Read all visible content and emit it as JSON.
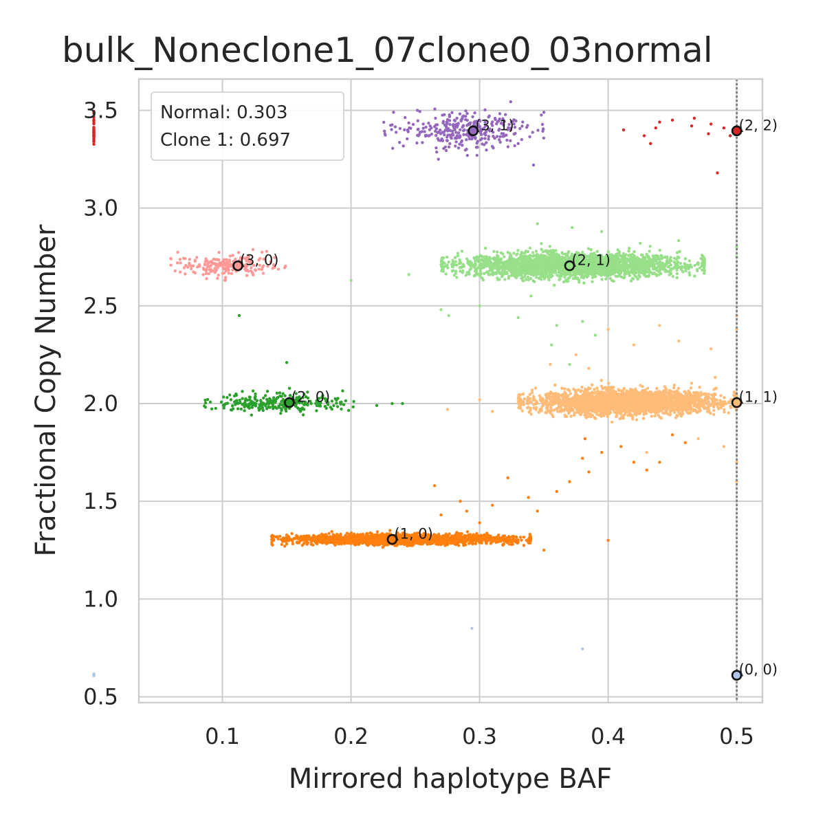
{
  "chart_data": {
    "type": "scatter",
    "title": "bulk_Noneclone1_07clone0_03normal",
    "xlabel": "Mirrored haplotype BAF",
    "ylabel": "Fractional Copy Number",
    "xlim": [
      0.035,
      0.52
    ],
    "ylim": [
      0.47,
      3.66
    ],
    "xticks": [
      0.1,
      0.2,
      0.3,
      0.4,
      0.5
    ],
    "xtick_labels": [
      "0.1",
      "0.2",
      "0.3",
      "0.4",
      "0.5"
    ],
    "yticks": [
      0.5,
      1.0,
      1.5,
      2.0,
      2.5,
      3.0,
      3.5
    ],
    "ytick_labels": [
      "0.5",
      "1.0",
      "1.5",
      "2.0",
      "2.5",
      "3.0",
      "3.5"
    ],
    "grid": true,
    "reference_line": {
      "x": 0.5,
      "style": "dotted",
      "color": "#808080"
    },
    "legend_box": {
      "placement": "top-left",
      "lines": [
        "Normal: 0.303",
        "Clone 1: 0.697"
      ]
    },
    "clusters": [
      {
        "state": "(0, 0)",
        "color": "#aec7e8",
        "center": [
          0.5,
          0.61
        ],
        "count": 4,
        "x_spread": [
          0.0,
          0.0
        ],
        "y_spread": 0.005,
        "extra": [
          [
            0.294,
            0.85
          ],
          [
            0.38,
            0.745
          ]
        ]
      },
      {
        "state": "(1, 0)",
        "color": "#ff7f0e",
        "center": [
          0.232,
          1.305
        ],
        "count": 2200,
        "x_spread": [
          0.138,
          0.34
        ],
        "y_spread": 0.012,
        "extra": [
          [
            0.27,
            1.43
          ],
          [
            0.285,
            1.5
          ],
          [
            0.29,
            1.45
          ],
          [
            0.31,
            1.48
          ],
          [
            0.322,
            1.62
          ],
          [
            0.338,
            1.52
          ],
          [
            0.345,
            1.45
          ],
          [
            0.36,
            1.55
          ],
          [
            0.37,
            1.6
          ],
          [
            0.38,
            1.72
          ],
          [
            0.385,
            1.65
          ],
          [
            0.395,
            1.75
          ],
          [
            0.41,
            1.78
          ],
          [
            0.42,
            1.7
          ],
          [
            0.43,
            1.66
          ],
          [
            0.44,
            1.7
          ],
          [
            0.45,
            1.84
          ],
          [
            0.46,
            1.8
          ],
          [
            0.382,
            1.82
          ],
          [
            0.4,
            1.3
          ],
          [
            0.35,
            1.25
          ],
          [
            0.3,
            1.39
          ],
          [
            0.265,
            1.58
          ]
        ]
      },
      {
        "state": "(1, 1)",
        "color": "#ffbb78",
        "center": [
          0.5,
          2.005
        ],
        "count": 4000,
        "x_spread": [
          0.33,
          0.5
        ],
        "y_spread": 0.03,
        "extra": [
          [
            0.275,
            1.97
          ],
          [
            0.31,
            1.96
          ],
          [
            0.3,
            2.02
          ],
          [
            0.355,
            2.2
          ],
          [
            0.375,
            2.25
          ],
          [
            0.42,
            2.3
          ],
          [
            0.44,
            2.4
          ],
          [
            0.455,
            2.32
          ],
          [
            0.48,
            2.28
          ],
          [
            0.5,
            2.45
          ],
          [
            0.5,
            2.38
          ],
          [
            0.5,
            1.6
          ],
          [
            0.5,
            1.7
          ],
          [
            0.49,
            1.78
          ],
          [
            0.47,
            1.82
          ],
          [
            0.43,
            1.75
          ],
          [
            0.4,
            2.38
          ],
          [
            0.385,
            2.18
          ]
        ]
      },
      {
        "state": "(2, 0)",
        "color": "#2ca02c",
        "center": [
          0.152,
          2.005
        ],
        "count": 260,
        "x_spread": [
          0.085,
          0.205
        ],
        "y_spread": 0.025,
        "extra": [
          [
            0.113,
            2.45
          ],
          [
            0.15,
            2.21
          ],
          [
            0.232,
            2.0
          ],
          [
            0.24,
            2.0
          ],
          [
            0.22,
            1.99
          ]
        ]
      },
      {
        "state": "(2, 1)",
        "color": "#98df8a",
        "center": [
          0.37,
          2.705
        ],
        "count": 3200,
        "x_spread": [
          0.27,
          0.475
        ],
        "y_spread": 0.03,
        "extra": [
          [
            0.2,
            2.63
          ],
          [
            0.245,
            2.66
          ],
          [
            0.27,
            2.48
          ],
          [
            0.276,
            2.45
          ],
          [
            0.3,
            2.5
          ],
          [
            0.33,
            2.44
          ],
          [
            0.34,
            2.55
          ],
          [
            0.36,
            2.4
          ],
          [
            0.38,
            2.42
          ],
          [
            0.39,
            2.35
          ],
          [
            0.356,
            2.3
          ],
          [
            0.37,
            2.2
          ],
          [
            0.345,
            2.92
          ],
          [
            0.372,
            2.9
          ],
          [
            0.395,
            2.88
          ],
          [
            0.425,
            2.82
          ],
          [
            0.5,
            2.6
          ],
          [
            0.5,
            2.75
          ],
          [
            0.5,
            2.8
          ]
        ]
      },
      {
        "state": "(2, 2)",
        "color": "#d62728",
        "center": [
          0.5,
          3.395
        ],
        "count": 40,
        "x_spread": [
          0.0,
          0.0
        ],
        "y_spread": 0.04,
        "extra": [
          [
            0.412,
            3.4
          ],
          [
            0.428,
            3.37
          ],
          [
            0.433,
            3.33
          ],
          [
            0.437,
            3.41
          ],
          [
            0.44,
            3.44
          ],
          [
            0.45,
            3.45
          ],
          [
            0.465,
            3.42
          ],
          [
            0.48,
            3.43
          ],
          [
            0.49,
            3.41
          ],
          [
            0.485,
            3.18
          ],
          [
            0.467,
            3.46
          ],
          [
            0.478,
            3.38
          ],
          [
            0.495,
            3.37
          ]
        ]
      },
      {
        "state": "(3, 0)",
        "color": "#ff9896",
        "center": [
          0.112,
          2.705
        ],
        "count": 200,
        "x_spread": [
          0.058,
          0.15
        ],
        "y_spread": 0.028,
        "extra": [
          [
            0.06,
            2.74
          ],
          [
            0.065,
            2.72
          ]
        ]
      },
      {
        "state": "(3, 1)",
        "color": "#9467bd",
        "center": [
          0.295,
          3.395
        ],
        "count": 300,
        "x_spread": [
          0.225,
          0.35
        ],
        "y_spread": 0.045,
        "extra": [
          [
            0.268,
            3.25
          ],
          [
            0.342,
            3.22
          ],
          [
            0.35,
            3.49
          ],
          [
            0.33,
            3.33
          ],
          [
            0.298,
            3.27
          ]
        ]
      }
    ]
  }
}
